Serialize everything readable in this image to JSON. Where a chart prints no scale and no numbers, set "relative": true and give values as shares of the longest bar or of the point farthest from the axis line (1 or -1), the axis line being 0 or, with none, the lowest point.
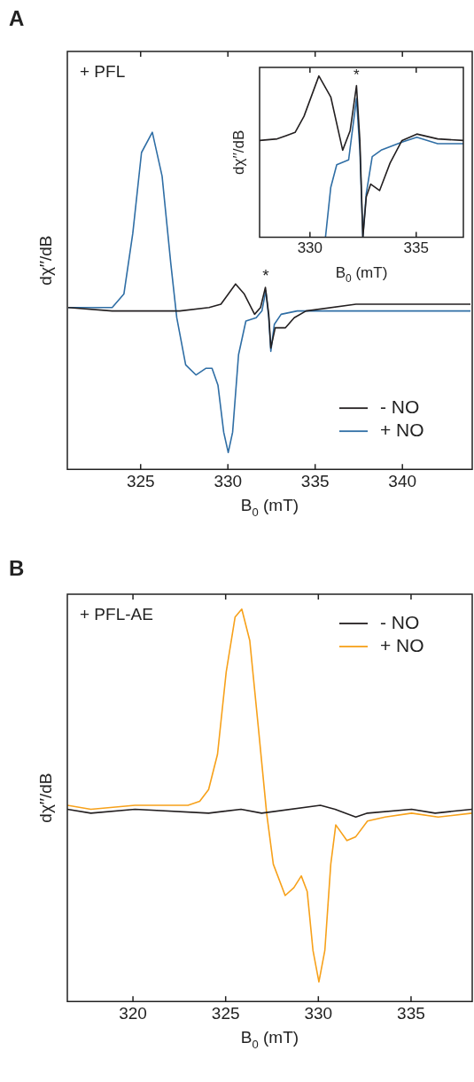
{
  "chart_data": [
    {
      "type": "line",
      "title": "A",
      "xlabel": "B$_{0}$ (mT)",
      "ylabel": "dχ′′/dB",
      "relative": true,
      "xlim": [
        320.8,
        344
      ],
      "xticks": [
        325,
        330,
        335,
        340
      ],
      "legend": "bottom right",
      "annotations": [
        "+ PFL",
        {
          "text": "*",
          "x": 332.17,
          "y": 0.54
        }
      ],
      "series": [
        {
          "name": "- NO",
          "color": "#231f20",
          "x": [
            320.85,
            323.37,
            327.24,
            328.92,
            329.6,
            330.44,
            330.94,
            331.53,
            331.87,
            332.15,
            332.34,
            332.46,
            332.71,
            333.3,
            333.8,
            334.48,
            337.34,
            340.7,
            343.9
          ],
          "values": [
            0.48,
            0.47,
            0.47,
            0.48,
            0.49,
            0.55,
            0.52,
            0.46,
            0.48,
            0.54,
            0.46,
            0.36,
            0.42,
            0.42,
            0.45,
            0.47,
            0.49,
            0.49,
            0.49
          ]
        },
        {
          "name": "+ NO",
          "color": "#2f6ea5",
          "x": [
            320.85,
            323.37,
            324.04,
            324.55,
            325.05,
            325.67,
            326.23,
            326.73,
            327.07,
            327.58,
            328.17,
            328.75,
            329.09,
            329.43,
            329.76,
            330.02,
            330.27,
            330.61,
            331.03,
            331.62,
            331.95,
            332.17,
            332.34,
            332.46,
            332.66,
            333.05,
            333.97,
            334.98,
            337.34,
            340.7,
            343.9
          ],
          "values": [
            0.48,
            0.48,
            0.52,
            0.7,
            0.94,
            1,
            0.87,
            0.61,
            0.45,
            0.31,
            0.28,
            0.3,
            0.3,
            0.25,
            0.11,
            0.05,
            0.11,
            0.34,
            0.44,
            0.45,
            0.47,
            0.53,
            0.45,
            0.35,
            0.43,
            0.46,
            0.47,
            0.47,
            0.47,
            0.47,
            0.47
          ]
        }
      ]
    },
    {
      "type": "line",
      "xlabel": "B$_{0}$ (mT)",
      "ylabel": "dχ′′/dB",
      "relative": true,
      "xlim": [
        327.63,
        337.22
      ],
      "xticks": [
        330,
        335
      ],
      "annotations": [
        {
          "text": "*",
          "x": 332.19,
          "y": 0.94
        }
      ],
      "series": [
        {
          "color": "#231f20",
          "x": [
            327.63,
            328.46,
            328.88,
            329.3,
            329.72,
            330.42,
            330.98,
            331.54,
            331.89,
            332.19,
            332.35,
            332.49,
            332.65,
            332.86,
            333.28,
            333.77,
            334.33,
            335.03,
            336.01,
            337.22
          ],
          "values": [
            0.6,
            0.61,
            0.63,
            0.65,
            0.75,
            1,
            0.87,
            0.54,
            0.66,
            0.94,
            0.6,
            0,
            0.25,
            0.33,
            0.29,
            0.46,
            0.6,
            0.64,
            0.61,
            0.6
          ]
        },
        {
          "color": "#2f6ea5",
          "x": [
            330.73,
            330.98,
            331.26,
            331.82,
            332.19,
            332.35,
            332.49,
            332.65,
            332.93,
            333.35,
            334.33,
            335.03,
            336.01,
            337.22
          ],
          "values": [
            0,
            0.31,
            0.45,
            0.48,
            0.86,
            0.54,
            0,
            0.27,
            0.5,
            0.54,
            0.59,
            0.62,
            0.58,
            0.58
          ]
        }
      ]
    },
    {
      "type": "line",
      "title": "B",
      "xlabel": "B$_{0}$ (mT)",
      "ylabel": "dχ′′/dB",
      "relative": true,
      "xlim": [
        316.46,
        338.3
      ],
      "xticks": [
        320,
        325,
        330,
        335
      ],
      "legend": "top right",
      "annotations": [
        "+ PFL-AE"
      ],
      "series": [
        {
          "name": "- NO",
          "color": "#231f20",
          "x": [
            316.46,
            317.73,
            320.11,
            324.08,
            325.83,
            326.94,
            330.11,
            330.9,
            332.02,
            332.65,
            335.03,
            336.3,
            338.29
          ],
          "values": [
            0.49,
            0.48,
            0.49,
            0.48,
            0.49,
            0.48,
            0.5,
            0.49,
            0.47,
            0.48,
            0.49,
            0.48,
            0.49
          ]
        },
        {
          "name": "+ NO",
          "color": "#f7a11a",
          "x": [
            316.46,
            317.73,
            320.11,
            322.97,
            323.6,
            324.08,
            324.56,
            325.03,
            325.51,
            325.87,
            326.3,
            326.78,
            327.21,
            327.57,
            328.21,
            328.68,
            329.08,
            329.4,
            329.71,
            330.03,
            330.35,
            330.67,
            330.94,
            331.54,
            332.02,
            332.65,
            333.6,
            335.03,
            336.46,
            338.29
          ],
          "values": [
            0.5,
            0.49,
            0.5,
            0.5,
            0.51,
            0.54,
            0.63,
            0.84,
            0.98,
            1,
            0.92,
            0.69,
            0.48,
            0.35,
            0.27,
            0.29,
            0.32,
            0.28,
            0.13,
            0.05,
            0.13,
            0.35,
            0.45,
            0.41,
            0.42,
            0.46,
            0.47,
            0.48,
            0.47,
            0.48
          ]
        }
      ]
    }
  ]
}
